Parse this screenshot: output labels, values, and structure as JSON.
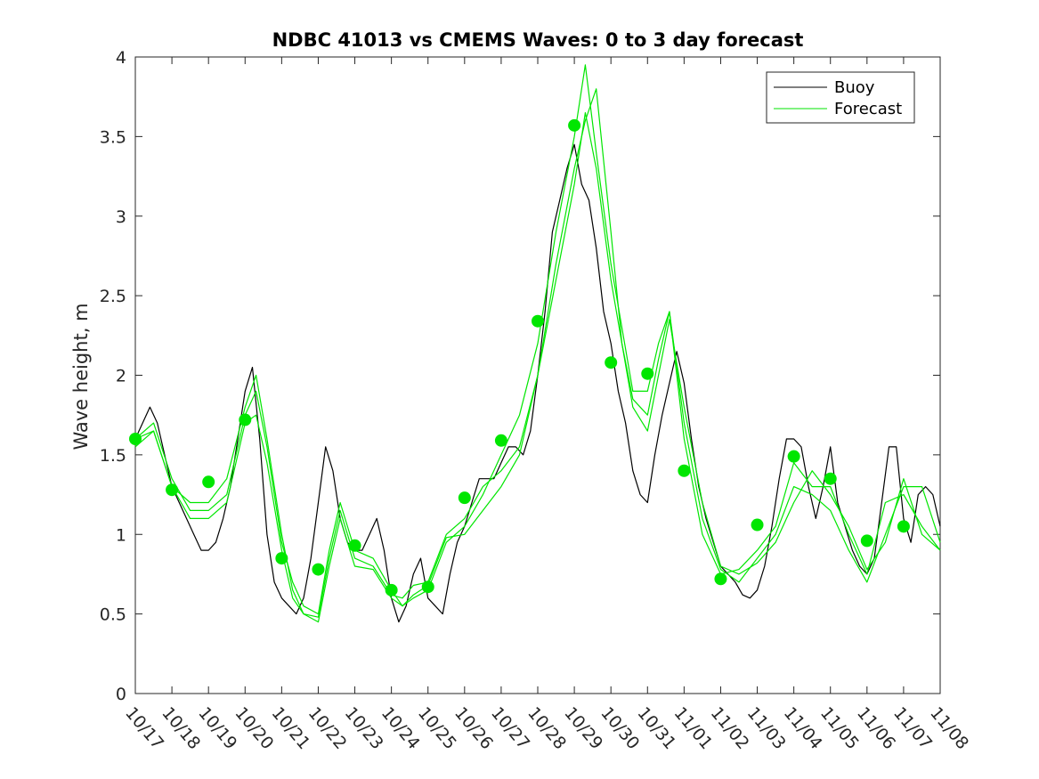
{
  "chart_data": {
    "type": "line",
    "title": "NDBC 41013 vs CMEMS Waves: 0 to 3 day forecast",
    "xlabel": "",
    "ylabel": "Wave height, m",
    "xlim": [
      0,
      22
    ],
    "ylim": [
      0,
      4
    ],
    "yticks": [
      "0",
      "0.5",
      "1",
      "1.5",
      "2",
      "2.5",
      "3",
      "3.5",
      "4"
    ],
    "xticks": [
      "10/17",
      "10/18",
      "10/19",
      "10/20",
      "10/21",
      "10/22",
      "10/23",
      "10/24",
      "10/25",
      "10/26",
      "10/27",
      "10/28",
      "10/29",
      "10/30",
      "10/31",
      "11/01",
      "11/02",
      "11/03",
      "11/04",
      "11/05",
      "11/06",
      "11/07",
      "11/08"
    ],
    "legend": {
      "placement": "top-right",
      "entries": [
        "Buoy",
        "Forecast"
      ]
    },
    "colors": {
      "buoy": "#000000",
      "forecast": "#00e600",
      "axis": "#262626"
    },
    "buoy": {
      "name": "Buoy",
      "x": [
        0,
        0.2,
        0.4,
        0.6,
        0.8,
        1.0,
        1.2,
        1.4,
        1.6,
        1.8,
        2.0,
        2.2,
        2.4,
        2.6,
        2.8,
        3.0,
        3.2,
        3.4,
        3.6,
        3.8,
        4.0,
        4.2,
        4.4,
        4.6,
        4.8,
        5.0,
        5.2,
        5.4,
        5.6,
        5.8,
        6.0,
        6.2,
        6.4,
        6.6,
        6.8,
        7.0,
        7.2,
        7.4,
        7.6,
        7.8,
        8.0,
        8.2,
        8.4,
        8.6,
        8.8,
        9.0,
        9.2,
        9.4,
        9.6,
        9.8,
        10.0,
        10.2,
        10.4,
        10.6,
        10.8,
        11.0,
        11.2,
        11.4,
        11.6,
        11.8,
        12.0,
        12.2,
        12.4,
        12.6,
        12.8,
        13.0,
        13.2,
        13.4,
        13.6,
        13.8,
        14.0,
        14.2,
        14.4,
        14.6,
        14.8,
        15.0,
        15.2,
        15.4,
        15.6,
        15.8,
        16.0,
        16.2,
        16.4,
        16.6,
        16.8,
        17.0,
        17.2,
        17.4,
        17.6,
        17.8,
        18.0,
        18.2,
        18.4,
        18.6,
        18.8,
        19.0,
        19.2,
        19.4,
        19.6,
        19.8,
        20.0,
        20.2,
        20.4,
        20.6,
        20.8,
        21.0,
        21.2,
        21.4,
        21.6,
        21.8,
        22.0
      ],
      "y": [
        1.6,
        1.7,
        1.8,
        1.7,
        1.5,
        1.3,
        1.2,
        1.1,
        1.0,
        0.9,
        0.9,
        0.95,
        1.1,
        1.3,
        1.6,
        1.9,
        2.05,
        1.6,
        1.0,
        0.7,
        0.6,
        0.55,
        0.5,
        0.6,
        0.85,
        1.2,
        1.55,
        1.4,
        1.1,
        0.95,
        0.9,
        0.9,
        1.0,
        1.1,
        0.9,
        0.6,
        0.45,
        0.55,
        0.75,
        0.85,
        0.6,
        0.55,
        0.5,
        0.75,
        0.95,
        1.05,
        1.2,
        1.35,
        1.35,
        1.35,
        1.45,
        1.55,
        1.55,
        1.5,
        1.65,
        2.0,
        2.4,
        2.9,
        3.1,
        3.3,
        3.45,
        3.2,
        3.1,
        2.8,
        2.4,
        2.2,
        1.9,
        1.7,
        1.4,
        1.25,
        1.2,
        1.5,
        1.75,
        1.95,
        2.15,
        1.95,
        1.6,
        1.3,
        1.1,
        0.95,
        0.8,
        0.75,
        0.7,
        0.62,
        0.6,
        0.65,
        0.8,
        1.05,
        1.35,
        1.6,
        1.6,
        1.55,
        1.3,
        1.1,
        1.3,
        1.55,
        1.2,
        1.05,
        0.9,
        0.8,
        0.75,
        0.85,
        1.2,
        1.55,
        1.55,
        1.1,
        0.95,
        1.25,
        1.3,
        1.25,
        1.05
      ]
    },
    "forecast_series": [
      {
        "name": "Forecast",
        "x": [
          0,
          0.5,
          1,
          1.5,
          2,
          2.5,
          3,
          3.3,
          3.6,
          4,
          4.3,
          4.6,
          5,
          5.3,
          5.6,
          6,
          6.5,
          7,
          7.3,
          7.6,
          8,
          8.5,
          9,
          9.5,
          10,
          10.5,
          11,
          11.5,
          12,
          12.3,
          12.6,
          13,
          13.3,
          13.6,
          14,
          14.3,
          14.6,
          15,
          15.5,
          16,
          16.5,
          17,
          17.5,
          18,
          18.5,
          19,
          19.5,
          20,
          20.5,
          21,
          21.5,
          22
        ],
        "y": [
          1.6,
          1.7,
          1.35,
          1.15,
          1.15,
          1.25,
          1.75,
          1.9,
          1.55,
          0.95,
          0.7,
          0.55,
          0.5,
          0.9,
          1.2,
          0.9,
          0.85,
          0.65,
          0.55,
          0.6,
          0.65,
          0.95,
          1.05,
          1.25,
          1.5,
          1.75,
          2.2,
          2.9,
          3.5,
          3.95,
          3.4,
          2.7,
          2.3,
          1.9,
          1.9,
          2.2,
          2.4,
          1.6,
          1.0,
          0.75,
          0.78,
          0.9,
          1.05,
          1.45,
          1.3,
          1.3,
          1.0,
          0.75,
          1.2,
          1.25,
          1.05,
          0.9
        ]
      },
      {
        "name": "Forecast",
        "x": [
          0,
          0.5,
          1,
          1.5,
          2,
          2.5,
          3,
          3.3,
          3.6,
          4,
          4.3,
          4.6,
          5,
          5.3,
          5.6,
          6,
          6.5,
          7,
          7.3,
          7.6,
          8,
          8.5,
          9,
          9.5,
          10,
          10.5,
          11,
          11.5,
          12,
          12.3,
          12.6,
          13,
          13.3,
          13.6,
          14,
          14.3,
          14.6,
          15,
          15.5,
          16,
          16.5,
          17,
          17.5,
          18,
          18.5,
          19,
          19.5,
          20,
          20.5,
          21,
          21.5,
          22
        ],
        "y": [
          1.55,
          1.65,
          1.3,
          1.2,
          1.2,
          1.35,
          1.8,
          2.0,
          1.6,
          1.0,
          0.65,
          0.5,
          0.48,
          0.85,
          1.15,
          0.85,
          0.8,
          0.62,
          0.6,
          0.68,
          0.7,
          1.0,
          1.1,
          1.3,
          1.4,
          1.55,
          2.0,
          2.7,
          3.3,
          3.6,
          3.8,
          2.9,
          2.2,
          1.8,
          1.65,
          2.0,
          2.35,
          1.8,
          1.2,
          0.8,
          0.75,
          0.82,
          0.95,
          1.2,
          1.4,
          1.25,
          1.05,
          0.78,
          0.95,
          1.35,
          1.0,
          0.9
        ]
      },
      {
        "name": "Forecast",
        "x": [
          0,
          0.5,
          1,
          1.5,
          2,
          2.5,
          3,
          3.3,
          3.6,
          4,
          4.3,
          4.6,
          5,
          5.3,
          5.6,
          6,
          6.5,
          7,
          7.3,
          7.6,
          8,
          8.5,
          9,
          9.5,
          10,
          10.5,
          11,
          11.5,
          12,
          12.3,
          12.6,
          13,
          13.3,
          13.6,
          14,
          14.3,
          14.6,
          15,
          15.5,
          16,
          16.5,
          17,
          17.5,
          18,
          18.5,
          19,
          19.5,
          20,
          20.5,
          21,
          21.5,
          22
        ],
        "y": [
          1.6,
          1.65,
          1.3,
          1.1,
          1.1,
          1.2,
          1.7,
          1.75,
          1.45,
          0.9,
          0.6,
          0.5,
          0.45,
          0.8,
          1.1,
          0.8,
          0.78,
          0.6,
          0.55,
          0.62,
          0.68,
          0.98,
          1.0,
          1.15,
          1.3,
          1.5,
          2.0,
          2.6,
          3.2,
          3.65,
          3.3,
          2.6,
          2.2,
          1.85,
          1.75,
          2.1,
          2.4,
          1.7,
          1.1,
          0.78,
          0.7,
          0.85,
          1.0,
          1.3,
          1.25,
          1.15,
          0.9,
          0.7,
          1.0,
          1.3,
          1.3,
          0.95
        ]
      }
    ],
    "forecast_markers": {
      "x": [
        0,
        1,
        2,
        3,
        4,
        5,
        6,
        7,
        8,
        9,
        10,
        11,
        12,
        13,
        14,
        15,
        16,
        17,
        18,
        19,
        20,
        21
      ],
      "y": [
        1.6,
        1.28,
        1.33,
        1.72,
        0.85,
        0.78,
        0.93,
        0.65,
        0.67,
        1.23,
        1.59,
        2.34,
        3.57,
        2.08,
        2.01,
        1.4,
        0.72,
        1.06,
        1.49,
        1.35,
        0.96,
        1.05
      ]
    }
  }
}
